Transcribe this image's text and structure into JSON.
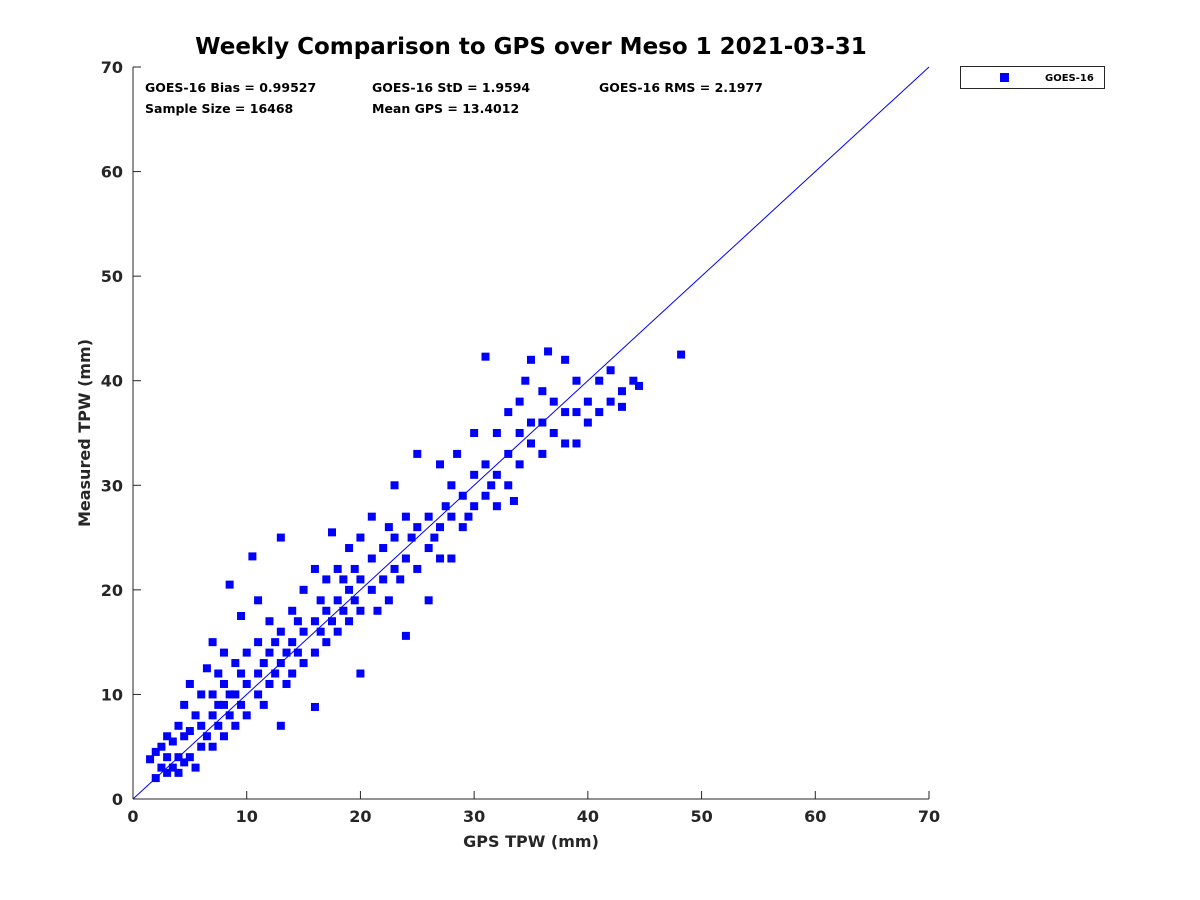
{
  "chart_data": {
    "type": "scatter",
    "title": "Weekly Comparison to GPS over Meso 1 2021-03-31",
    "xlabel": "GPS TPW (mm)",
    "ylabel": "Measured TPW (mm)",
    "xlim": [
      0,
      70
    ],
    "ylim": [
      0,
      70
    ],
    "xticks": [
      "0",
      "10",
      "20",
      "30",
      "40",
      "50",
      "60",
      "70"
    ],
    "yticks": [
      "0",
      "10",
      "20",
      "30",
      "40",
      "50",
      "60",
      "70"
    ],
    "grid": false,
    "legend": {
      "placement": "outside-top-right",
      "entries": [
        "GOES-16"
      ]
    },
    "reference_line": {
      "name": "1:1 line",
      "from": [
        0,
        0
      ],
      "to": [
        70,
        70
      ],
      "color": "#0000ff"
    },
    "stats": [
      "GOES-16 Bias = 0.99527",
      "GOES-16 StD = 1.9594",
      "GOES-16 RMS = 2.1977",
      "Sample Size = 16468",
      "Mean GPS = 13.4012"
    ],
    "series": [
      {
        "name": "GOES-16",
        "color": "#0000ff",
        "marker": "square",
        "points": [
          [
            1.5,
            3.8
          ],
          [
            2,
            2
          ],
          [
            2,
            4.5
          ],
          [
            2.5,
            3
          ],
          [
            2.5,
            5
          ],
          [
            3,
            2.5
          ],
          [
            3,
            4
          ],
          [
            3,
            6
          ],
          [
            3.5,
            3
          ],
          [
            3.5,
            5.5
          ],
          [
            4,
            2.5
          ],
          [
            4,
            4
          ],
          [
            4,
            7
          ],
          [
            4.5,
            3.5
          ],
          [
            4.5,
            6
          ],
          [
            4.5,
            9
          ],
          [
            5,
            4
          ],
          [
            5,
            6.5
          ],
          [
            5,
            11
          ],
          [
            5.5,
            3
          ],
          [
            5.5,
            8
          ],
          [
            6,
            5
          ],
          [
            6,
            7
          ],
          [
            6,
            10
          ],
          [
            6.5,
            6
          ],
          [
            6.5,
            12.5
          ],
          [
            7,
            5
          ],
          [
            7,
            8
          ],
          [
            7,
            10
          ],
          [
            7,
            15
          ],
          [
            7.5,
            7
          ],
          [
            7.5,
            9
          ],
          [
            7.5,
            12
          ],
          [
            8,
            6
          ],
          [
            8,
            9
          ],
          [
            8,
            11
          ],
          [
            8,
            14
          ],
          [
            8.5,
            8
          ],
          [
            8.5,
            10
          ],
          [
            8.5,
            20.5
          ],
          [
            9,
            7
          ],
          [
            9,
            10
          ],
          [
            9,
            13
          ],
          [
            9.5,
            9
          ],
          [
            9.5,
            12
          ],
          [
            9.5,
            17.5
          ],
          [
            10,
            8
          ],
          [
            10,
            11
          ],
          [
            10,
            14
          ],
          [
            10.5,
            23.2
          ],
          [
            11,
            10
          ],
          [
            11,
            12
          ],
          [
            11,
            15
          ],
          [
            11,
            19
          ],
          [
            11.5,
            9
          ],
          [
            11.5,
            13
          ],
          [
            12,
            11
          ],
          [
            12,
            14
          ],
          [
            12,
            17
          ],
          [
            12.5,
            12
          ],
          [
            12.5,
            15
          ],
          [
            13,
            7
          ],
          [
            13,
            13
          ],
          [
            13,
            16
          ],
          [
            13,
            25
          ],
          [
            13.5,
            11
          ],
          [
            13.5,
            14
          ],
          [
            14,
            12
          ],
          [
            14,
            15
          ],
          [
            14,
            18
          ],
          [
            14.5,
            14
          ],
          [
            14.5,
            17
          ],
          [
            15,
            13
          ],
          [
            15,
            16
          ],
          [
            15,
            20
          ],
          [
            16,
            8.8
          ],
          [
            16,
            14
          ],
          [
            16,
            17
          ],
          [
            16,
            22
          ],
          [
            16.5,
            16
          ],
          [
            16.5,
            19
          ],
          [
            17,
            15
          ],
          [
            17,
            18
          ],
          [
            17,
            21
          ],
          [
            17.5,
            17
          ],
          [
            17.5,
            25.5
          ],
          [
            18,
            16
          ],
          [
            18,
            19
          ],
          [
            18,
            22
          ],
          [
            18.5,
            18
          ],
          [
            18.5,
            21
          ],
          [
            19,
            17
          ],
          [
            19,
            20
          ],
          [
            19,
            24
          ],
          [
            19.5,
            19
          ],
          [
            19.5,
            22
          ],
          [
            20,
            12
          ],
          [
            20,
            18
          ],
          [
            20,
            21
          ],
          [
            20,
            25
          ],
          [
            21,
            20
          ],
          [
            21,
            23
          ],
          [
            21,
            27
          ],
          [
            21.5,
            18
          ],
          [
            22,
            21
          ],
          [
            22,
            24
          ],
          [
            22.5,
            19
          ],
          [
            22.5,
            26
          ],
          [
            23,
            22
          ],
          [
            23,
            25
          ],
          [
            23,
            30
          ],
          [
            23.5,
            21
          ],
          [
            24,
            15.6
          ],
          [
            24,
            23
          ],
          [
            24,
            27
          ],
          [
            24.5,
            25
          ],
          [
            25,
            22
          ],
          [
            25,
            26
          ],
          [
            25,
            33
          ],
          [
            26,
            19
          ],
          [
            26,
            24
          ],
          [
            26,
            27
          ],
          [
            26.5,
            25
          ],
          [
            27,
            23
          ],
          [
            27,
            26
          ],
          [
            27,
            32
          ],
          [
            27.5,
            28
          ],
          [
            28,
            23
          ],
          [
            28,
            27
          ],
          [
            28,
            30
          ],
          [
            28.5,
            33
          ],
          [
            29,
            26
          ],
          [
            29,
            29
          ],
          [
            29.5,
            27
          ],
          [
            30,
            28
          ],
          [
            30,
            31
          ],
          [
            30,
            35
          ],
          [
            31,
            29
          ],
          [
            31,
            32
          ],
          [
            31,
            42.3
          ],
          [
            31.5,
            30
          ],
          [
            32,
            28
          ],
          [
            32,
            31
          ],
          [
            32,
            35
          ],
          [
            33,
            30
          ],
          [
            33,
            33
          ],
          [
            33,
            37
          ],
          [
            33.5,
            28.5
          ],
          [
            34,
            32
          ],
          [
            34,
            35
          ],
          [
            34,
            38
          ],
          [
            34.5,
            40
          ],
          [
            35,
            34
          ],
          [
            35,
            36
          ],
          [
            35,
            42
          ],
          [
            36,
            33
          ],
          [
            36,
            36
          ],
          [
            36,
            39
          ],
          [
            36.5,
            42.8
          ],
          [
            37,
            35
          ],
          [
            37,
            38
          ],
          [
            38,
            34
          ],
          [
            38,
            37
          ],
          [
            38,
            42
          ],
          [
            39,
            34
          ],
          [
            39,
            37
          ],
          [
            39,
            40
          ],
          [
            40,
            36
          ],
          [
            40,
            38
          ],
          [
            41,
            37
          ],
          [
            41,
            40
          ],
          [
            42,
            38
          ],
          [
            42,
            41
          ],
          [
            43,
            39
          ],
          [
            43,
            37.5
          ],
          [
            44,
            40
          ],
          [
            44.5,
            39.5
          ],
          [
            48.2,
            42.5
          ]
        ]
      }
    ]
  }
}
